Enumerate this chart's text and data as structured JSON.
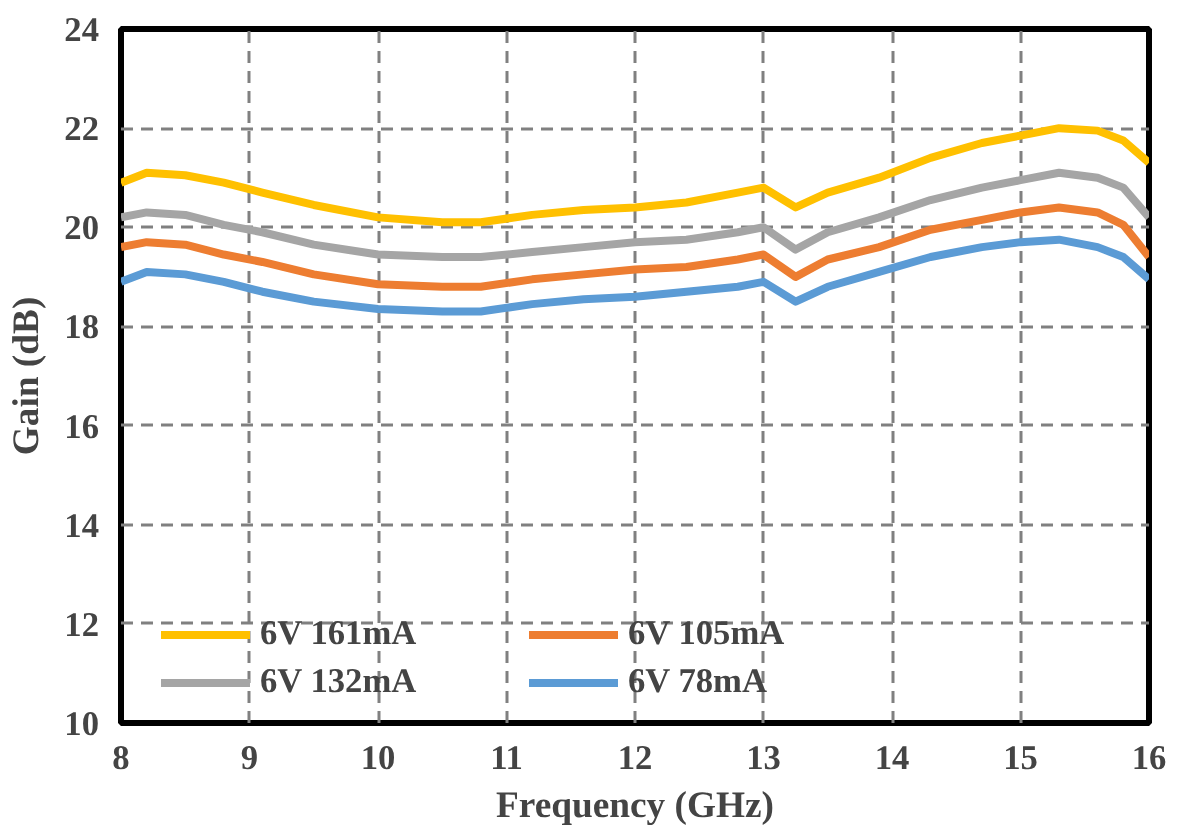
{
  "chart_data": {
    "type": "line",
    "xlabel": "Frequency (GHz)",
    "ylabel": "Gain (dB)",
    "x": [
      8,
      8.2,
      8.5,
      8.8,
      9.1,
      9.5,
      10,
      10.5,
      10.8,
      11.2,
      11.6,
      12,
      12.4,
      12.8,
      13,
      13.25,
      13.5,
      13.9,
      14.3,
      14.7,
      15,
      15.3,
      15.6,
      15.8,
      16
    ],
    "series": [
      {
        "name": "6V 161mA",
        "color": "#ffc000",
        "values": [
          20.9,
          21.1,
          21.05,
          20.9,
          20.7,
          20.45,
          20.2,
          20.1,
          20.1,
          20.25,
          20.35,
          20.4,
          20.5,
          20.7,
          20.8,
          20.4,
          20.7,
          21.0,
          21.4,
          21.7,
          21.85,
          22.0,
          21.95,
          21.75,
          21.3
        ]
      },
      {
        "name": "6V 132mA",
        "color": "#a5a5a5",
        "values": [
          20.2,
          20.3,
          20.25,
          20.05,
          19.9,
          19.65,
          19.45,
          19.4,
          19.4,
          19.5,
          19.6,
          19.7,
          19.75,
          19.9,
          20.0,
          19.55,
          19.9,
          20.2,
          20.55,
          20.8,
          20.95,
          21.1,
          21.0,
          20.8,
          20.2
        ]
      },
      {
        "name": "6V 105mA",
        "color": "#ed7d31",
        "values": [
          19.6,
          19.7,
          19.65,
          19.45,
          19.3,
          19.05,
          18.85,
          18.8,
          18.8,
          18.95,
          19.05,
          19.15,
          19.2,
          19.35,
          19.45,
          19.0,
          19.35,
          19.6,
          19.95,
          20.15,
          20.3,
          20.4,
          20.3,
          20.05,
          19.4
        ]
      },
      {
        "name": "6V 78mA",
        "color": "#5b9bd5",
        "values": [
          18.9,
          19.1,
          19.05,
          18.9,
          18.7,
          18.5,
          18.35,
          18.3,
          18.3,
          18.45,
          18.55,
          18.6,
          18.7,
          18.8,
          18.9,
          18.5,
          18.8,
          19.1,
          19.4,
          19.6,
          19.7,
          19.75,
          19.6,
          19.4,
          18.95
        ]
      }
    ],
    "xlim": [
      8,
      16
    ],
    "ylim": [
      10,
      24
    ],
    "xticks": [
      8,
      9,
      10,
      11,
      12,
      13,
      14,
      15,
      16
    ],
    "yticks": [
      10,
      12,
      14,
      16,
      18,
      20,
      22,
      24
    ],
    "grid": true,
    "legend": "bottom",
    "line_style": "solid",
    "marker": "none"
  }
}
